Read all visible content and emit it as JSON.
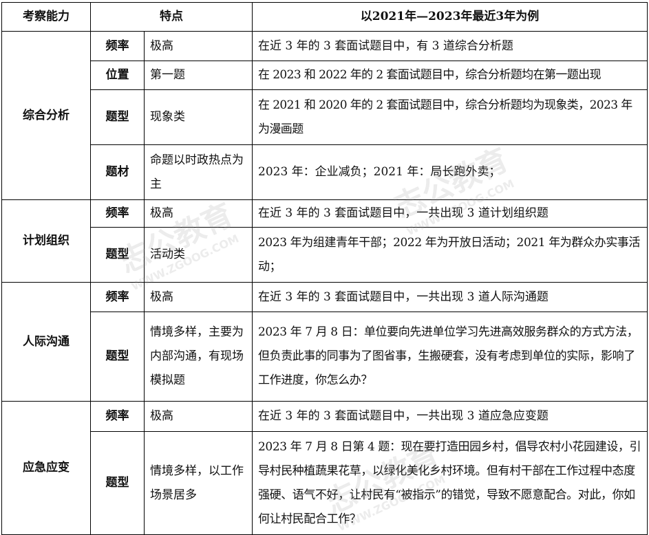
{
  "watermark": "志公教育 WWW.ZGOOG.COM",
  "headers": [
    "考察能力",
    "特点",
    "以2021年—2023年最近3年为例"
  ],
  "sections": [
    {
      "category": "综合分析",
      "rows": [
        {
          "key": "频率",
          "feature": "极高",
          "example": "在近 3 年的 3 套面试题目中，有 3 道综合分析题"
        },
        {
          "key": "位置",
          "feature": "第一题",
          "example": "在 2023 和 2022 年的 2 套面试题目中，综合分析题均在第一题出现"
        },
        {
          "key": "题型",
          "feature": "现象类",
          "example": "在 2021 和 2020 年的 2 套面试题目中，综合分析题均为现象类，2023 年为漫画题"
        },
        {
          "key": "题材",
          "feature": "命题以时政热点为主",
          "example": "2023 年：企业减负；2021 年：局长跑外卖；"
        }
      ]
    },
    {
      "category": "计划组织",
      "rows": [
        {
          "key": "频率",
          "feature": "极高",
          "example": "在近 3 年的 3 套面试题目中，一共出现 3 道计划组织题"
        },
        {
          "key": "题型",
          "feature": "活动类",
          "example": "2023 年为组建青年干部；2022 年为开放日活动；2021 年为群众办实事活动；"
        }
      ]
    },
    {
      "category": "人际沟通",
      "rows": [
        {
          "key": "频率",
          "feature": "极高",
          "example": "在近 3 年的 3 套面试题目中，一共出现 3 道人际沟通题"
        },
        {
          "key": "题型",
          "feature": "情境多样，主要为内部沟通，有现场模拟题",
          "example": "2023 年 7 月 8 日：单位要向先进单位学习先进高效服务群众的方式方法，但负责此事的同事为了图省事，生搬硬套，没有考虑到单位的实际，影响了工作进度，你怎么办？"
        }
      ]
    },
    {
      "category": "应急应变",
      "rows": [
        {
          "key": "频率",
          "feature": "极高",
          "example": "在近 3 年的 3 套面试题目中，一共出现 3 道应急应变题"
        },
        {
          "key": "题型",
          "feature": "情境多样，以工作场景居多",
          "example": "2023 年 7 月 8 日第 4 题：现在要打造田园乡村，倡导农村小花园建设，引导村民种植蔬果花草，以绿化美化乡村环境。但有村干部在工作过程中态度强硬、语气不好，让村民有“被指示”的错觉，导致不愿意配合。对此，你如何让村民配合工作？"
        }
      ]
    }
  ]
}
